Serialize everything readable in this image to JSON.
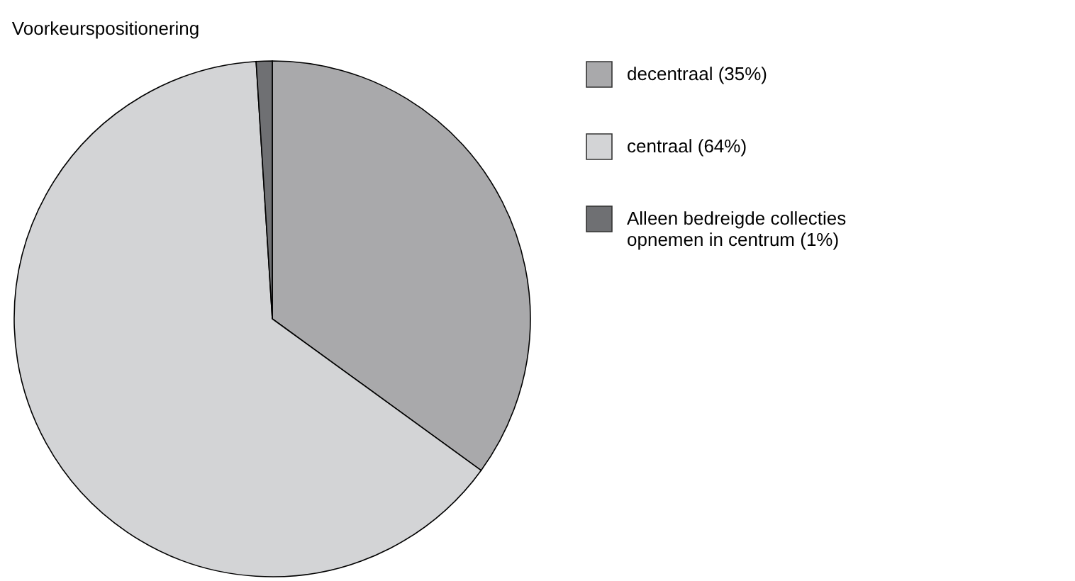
{
  "chart_data": {
    "type": "pie",
    "title": "Voorkeurspositionering",
    "categories": [
      "decentraal (35%)",
      "centraal (64%)",
      "Alleen bedreigde collecties opnemen in centrum (1%)"
    ],
    "values": [
      35,
      64,
      1
    ],
    "colors": [
      "#a9a9ab",
      "#d3d4d6",
      "#6f7073"
    ],
    "legend": "right"
  }
}
